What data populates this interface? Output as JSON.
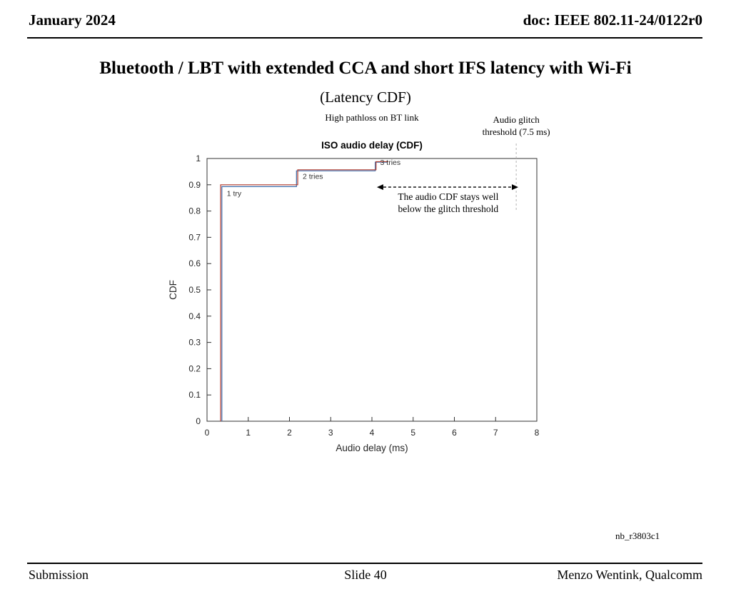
{
  "header": {
    "date": "January 2024",
    "doc": "doc: IEEE 802.11-24/0122r0"
  },
  "slide": {
    "title": "Bluetooth / LBT with extended CCA and short IFS latency with Wi-Fi",
    "subtitle": "(Latency CDF)",
    "note": "nb_r3803c1"
  },
  "footer": {
    "left": "Submission",
    "center": "Slide 40",
    "right": "Menzo Wentink, Qualcomm"
  },
  "chart_data": {
    "type": "line",
    "title": "ISO audio delay (CDF)",
    "subtitle": "High pathloss on BT link",
    "xlabel": "Audio delay (ms)",
    "ylabel": "CDF",
    "xlim": [
      0,
      8
    ],
    "ylim": [
      0,
      1
    ],
    "grid": false,
    "xticks": [
      "0",
      "1",
      "2",
      "3",
      "4",
      "5",
      "6",
      "7",
      "8"
    ],
    "yticks": [
      "0",
      "0.1",
      "0.2",
      "0.3",
      "0.4",
      "0.5",
      "0.6",
      "0.7",
      "0.8",
      "0.9",
      "1"
    ],
    "series": [
      {
        "name": "cdf-blue",
        "color": "#3d6fae",
        "step_points": [
          [
            0.36,
            0
          ],
          [
            0.36,
            0.893
          ],
          [
            2.17,
            0.893
          ],
          [
            2.17,
            0.953
          ],
          [
            4.08,
            0.953
          ],
          [
            4.08,
            0.986
          ],
          [
            4.38,
            0.986
          ]
        ]
      },
      {
        "name": "cdf-red",
        "color": "#b23b2e",
        "step_points": [
          [
            0.33,
            0
          ],
          [
            0.33,
            0.9
          ],
          [
            2.2,
            0.9
          ],
          [
            2.2,
            0.957
          ],
          [
            4.1,
            0.957
          ],
          [
            4.1,
            0.988
          ],
          [
            4.4,
            0.988
          ]
        ]
      }
    ],
    "point_labels": [
      {
        "text": "1 try",
        "x": 0.48,
        "y": 0.858
      },
      {
        "text": "2 tries",
        "x": 2.32,
        "y": 0.922
      },
      {
        "text": "3 tries",
        "x": 4.2,
        "y": 0.975
      }
    ],
    "threshold": {
      "label_lines": [
        "Audio glitch",
        "threshold (7.5 ms)"
      ],
      "x": 7.5,
      "line_y_bottom": 0.8
    },
    "arrow": {
      "y": 0.891,
      "x1": 4.12,
      "x2": 7.55
    },
    "annotation_lines": [
      "The audio CDF stays well",
      "below the glitch threshold"
    ],
    "annotation_pos": {
      "x": 5.85,
      "y": 0.842
    }
  }
}
